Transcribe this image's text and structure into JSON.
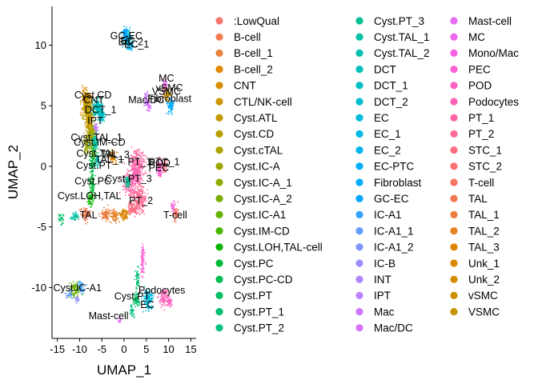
{
  "chart_data": {
    "type": "scatter",
    "title": "",
    "xlabel": "UMAP_1",
    "ylabel": "UMAP_2",
    "xlim": [
      -16.2,
      16.2
    ],
    "ylim": [
      -14.2,
      13.2
    ],
    "xticks": [
      -15,
      -10,
      -5,
      0,
      5,
      10,
      15
    ],
    "yticks": [
      -10,
      -5,
      0,
      5,
      10
    ],
    "xtick_labels": [
      "-15",
      "-10",
      "-5",
      "0",
      "5",
      "10",
      "15"
    ],
    "ytick_labels": [
      "-10",
      "-5",
      "0",
      "5",
      "10"
    ],
    "grid": false,
    "legend_position": "right",
    "legend_title": "",
    "categories": [
      {
        "name": ":LowQual",
        "color": "#F8766D"
      },
      {
        "name": "B-cell",
        "color": "#F27D53"
      },
      {
        "name": "B-cell_1",
        "color": "#EB833A"
      },
      {
        "name": "B-cell_2",
        "color": "#E38900"
      },
      {
        "name": "CNT",
        "color": "#DA8F00"
      },
      {
        "name": "CTL/NK-cell",
        "color": "#D09400"
      },
      {
        "name": "Cyst.ATL",
        "color": "#C59900"
      },
      {
        "name": "Cyst.CD",
        "color": "#B99E00"
      },
      {
        "name": "Cyst.cTAL",
        "color": "#ACA300"
      },
      {
        "name": "Cyst.IC-A",
        "color": "#9EA700"
      },
      {
        "name": "Cyst.IC-A_1",
        "color": "#8EAB00"
      },
      {
        "name": "Cyst.IC-A_2",
        "color": "#7CAE00"
      },
      {
        "name": "Cyst.IC-A1",
        "color": "#66B200"
      },
      {
        "name": "Cyst.IM-CD",
        "color": "#49B500"
      },
      {
        "name": "Cyst.LOH,TAL-cell",
        "color": "#0BB702"
      },
      {
        "name": "Cyst.PC",
        "color": "#00BA38"
      },
      {
        "name": "Cyst.PC-CD",
        "color": "#00BC51"
      },
      {
        "name": "Cyst.PT",
        "color": "#00BE64"
      },
      {
        "name": "Cyst.PT_1",
        "color": "#00BF75"
      },
      {
        "name": "Cyst.PT_2",
        "color": "#00C085"
      },
      {
        "name": "Cyst.PT_3",
        "color": "#00C094"
      },
      {
        "name": "Cyst.TAL_1",
        "color": "#00C1A2"
      },
      {
        "name": "Cyst.TAL_2",
        "color": "#00C0AF"
      },
      {
        "name": "DCT",
        "color": "#00C0BB"
      },
      {
        "name": "DCT_1",
        "color": "#00BFC4"
      },
      {
        "name": "DCT_2",
        "color": "#00BDD0"
      },
      {
        "name": "EC",
        "color": "#00BBDB"
      },
      {
        "name": "EC_1",
        "color": "#00B8E5"
      },
      {
        "name": "EC_2",
        "color": "#00B4EF"
      },
      {
        "name": "EC-PTC",
        "color": "#00B0F6"
      },
      {
        "name": "Fibroblast",
        "color": "#00ABFD"
      },
      {
        "name": "GC-EC",
        "color": "#00A5FF"
      },
      {
        "name": "IC-A1",
        "color": "#35A2FF"
      },
      {
        "name": "IC-A1_1",
        "color": "#619CFF"
      },
      {
        "name": "IC-A1_2",
        "color": "#7F96FF"
      },
      {
        "name": "IC-B",
        "color": "#978FFF"
      },
      {
        "name": "INT",
        "color": "#AC88FF"
      },
      {
        "name": "IPT",
        "color": "#BE80FF"
      },
      {
        "name": "Mac",
        "color": "#CD79FF"
      },
      {
        "name": "Mac/DC",
        "color": "#DA73FC"
      },
      {
        "name": "Mast-cell",
        "color": "#E56EF4"
      },
      {
        "name": "MC",
        "color": "#EF67EB"
      },
      {
        "name": "Mono/Mac",
        "color": "#F763E0"
      },
      {
        "name": "PEC",
        "color": "#FD61D3"
      },
      {
        "name": "POD",
        "color": "#FF61C5"
      },
      {
        "name": "Podocytes",
        "color": "#FF63B6"
      },
      {
        "name": "PT_1",
        "color": "#FF66A6"
      },
      {
        "name": "PT_2",
        "color": "#FF6A95"
      },
      {
        "name": "STC_1",
        "color": "#FE6D84"
      },
      {
        "name": "STC_2",
        "color": "#FB7073"
      },
      {
        "name": "T-cell",
        "color": "#F67462"
      },
      {
        "name": "TAL",
        "color": "#F07850"
      },
      {
        "name": "TAL_1",
        "color": "#EB7C3C"
      },
      {
        "name": "TAL_2",
        "color": "#E58023"
      },
      {
        "name": "TAL_3",
        "color": "#DF8400"
      },
      {
        "name": "Unk_1",
        "color": "#D98800"
      },
      {
        "name": "Unk_2",
        "color": "#D38C00"
      },
      {
        "name": "vSMC",
        "color": "#CC8F00"
      },
      {
        "name": "VSMC",
        "color": "#C59300"
      }
    ],
    "cluster_labels": [
      {
        "text": "GC-EC",
        "x": 0.5,
        "y": 10.5
      },
      {
        "text": "EC",
        "x": 0.8,
        "y": 10.1
      },
      {
        "text": "EC_2",
        "x": 1.5,
        "y": 10.0
      },
      {
        "text": "EC_1",
        "x": 2.8,
        "y": 9.8
      },
      {
        "text": "MC",
        "x": 9.5,
        "y": 7.0
      },
      {
        "text": "vSMC",
        "x": 10.2,
        "y": 6.2
      },
      {
        "text": "VSMC",
        "x": 9.5,
        "y": 5.9
      },
      {
        "text": "Mac/DC",
        "x": 5.0,
        "y": 5.2
      },
      {
        "text": "Fibroblast",
        "x": 10.2,
        "y": 5.3
      },
      {
        "text": "Cyst.CD",
        "x": -7.0,
        "y": 5.6
      },
      {
        "text": "CNT",
        "x": -6.8,
        "y": 5.2
      },
      {
        "text": "DCT_1",
        "x": -5.3,
        "y": 4.4
      },
      {
        "text": "IPT",
        "x": -6.5,
        "y": 3.5
      },
      {
        "text": "Cyst.TAL_1",
        "x": -6.2,
        "y": 2.1
      },
      {
        "text": "Cyst.IM-CD",
        "x": -5.5,
        "y": 1.7
      },
      {
        "text": "Cyst.TAL",
        "x": -6.2,
        "y": 0.8
      },
      {
        "text": "TAL_3",
        "x": -2.0,
        "y": 0.7
      },
      {
        "text": "TAL_1",
        "x": -3.3,
        "y": 0.3
      },
      {
        "text": "Cyst.PT",
        "x": -6.8,
        "y": -0.2
      },
      {
        "text": "PT_1",
        "x": 3.5,
        "y": 0.1
      },
      {
        "text": "POD",
        "x": 8.0,
        "y": 0.0
      },
      {
        "text": "STC_1",
        "x": 9.0,
        "y": 0.1
      },
      {
        "text": "PEC",
        "x": 7.8,
        "y": -0.4
      },
      {
        "text": "Cyst.PC",
        "x": -7.0,
        "y": -1.5
      },
      {
        "text": "Cyst.PT_3",
        "x": 1.0,
        "y": -1.3
      },
      {
        "text": "Cyst.LOH,TAL",
        "x": -7.8,
        "y": -2.7
      },
      {
        "text": "PT_2",
        "x": 3.8,
        "y": -3.1
      },
      {
        "text": "T-cell",
        "x": 11.5,
        "y": -4.3
      },
      {
        "text": "TAL",
        "x": -8.0,
        "y": -4.3
      },
      {
        "text": "Cyst.PT",
        "x": 1.8,
        "y": -11.0
      },
      {
        "text": "EC",
        "x": 5.2,
        "y": -11.7
      },
      {
        "text": "Cyst.IC-A1",
        "x": -10.5,
        "y": -10.3
      },
      {
        "text": "Podocytes",
        "x": 8.5,
        "y": -10.5
      },
      {
        "text": "Mast-cell",
        "x": -3.5,
        "y": -12.6
      }
    ]
  }
}
